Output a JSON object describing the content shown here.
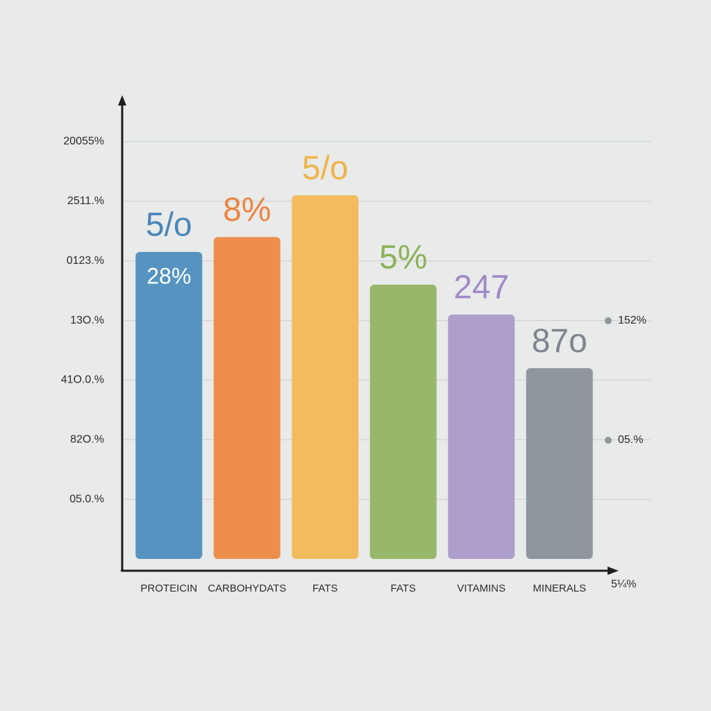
{
  "chart_data": {
    "type": "bar",
    "categories": [
      "PROTEICIN",
      "CARBOHYDATS",
      "FATS",
      "FATS",
      "VITAMINS",
      "MINERALS"
    ],
    "values": [
      5.15,
      5.4,
      6.1,
      4.6,
      4.1,
      3.2
    ],
    "colors": [
      "#5693c0",
      "#ee8e4d",
      "#f2bc5c",
      "#98b76a",
      "#ae9ecb",
      "#8e969e"
    ],
    "label_colors": [
      "#4a86b8",
      "#ec8440",
      "#f0b445",
      "#8cb256",
      "#a08ac8",
      "#7e858c"
    ],
    "bar_labels": [
      "5/o",
      "8%",
      "5/o",
      "5%",
      "247",
      "87o"
    ],
    "inner_label": "28%",
    "side_labels": [
      "152%",
      "05.%"
    ],
    "x_end_label": "5¼%",
    "ylim": [
      0,
      7.8
    ],
    "yticks": [
      {
        "value": 1,
        "label": "05.0.%"
      },
      {
        "value": 2,
        "label": "82O.%"
      },
      {
        "value": 3,
        "label": "41O.0.%"
      },
      {
        "value": 4,
        "label": "13O.%"
      },
      {
        "value": 5,
        "label": "0123.%"
      },
      {
        "value": 6,
        "label": "2511.%"
      },
      {
        "value": 7,
        "label": "20055%"
      }
    ],
    "grid": true
  }
}
